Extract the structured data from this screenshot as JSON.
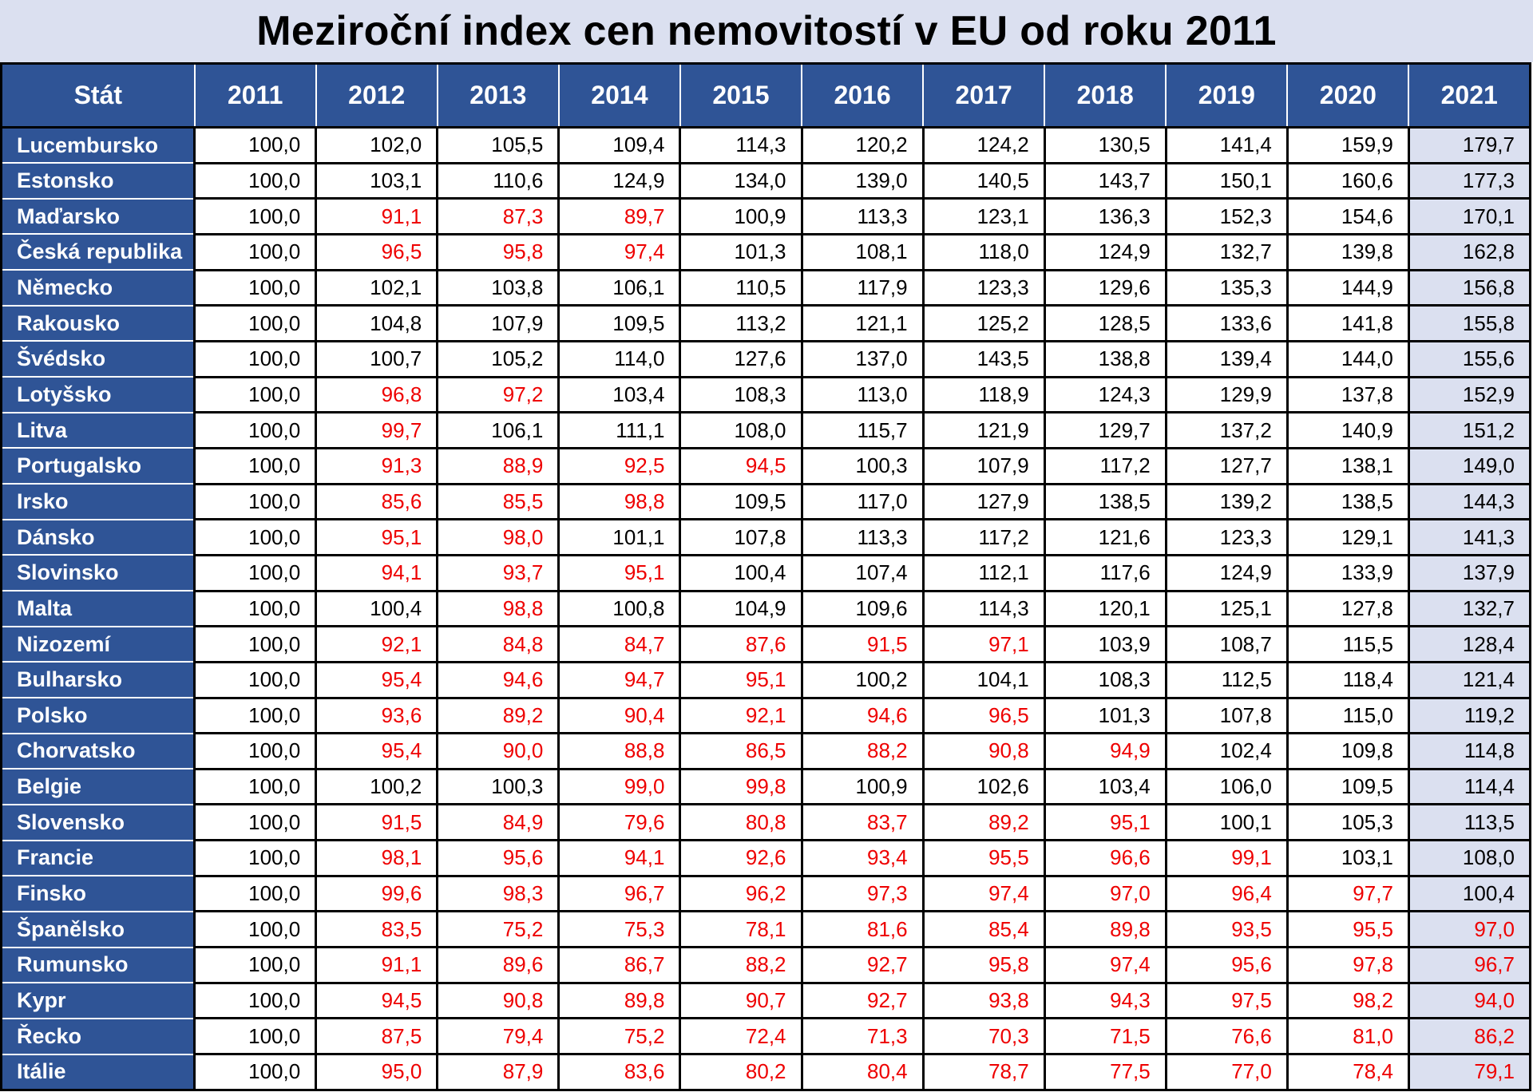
{
  "title": "Meziroční index cen nemovitostí v EU od roku 2011",
  "colors": {
    "header_bg": "#2f5496",
    "title_bg": "#dbe0f0",
    "highlight_column_bg": "#dbe0f0",
    "below_100": "#ee0000",
    "normal_text": "#000000"
  },
  "chart_data": {
    "type": "table",
    "title": "Meziroční index cen nemovitostí v EU od roku 2011",
    "columns": [
      "Stát",
      "2011",
      "2012",
      "2013",
      "2014",
      "2015",
      "2016",
      "2017",
      "2018",
      "2019",
      "2020",
      "2021"
    ],
    "rows": [
      {
        "state": "Lucembursko",
        "values": [
          "100,0",
          "102,0",
          "105,5",
          "109,4",
          "114,3",
          "120,2",
          "124,2",
          "130,5",
          "141,4",
          "159,9",
          "179,7"
        ]
      },
      {
        "state": "Estonsko",
        "values": [
          "100,0",
          "103,1",
          "110,6",
          "124,9",
          "134,0",
          "139,0",
          "140,5",
          "143,7",
          "150,1",
          "160,6",
          "177,3"
        ]
      },
      {
        "state": "Maďarsko",
        "values": [
          "100,0",
          "91,1",
          "87,3",
          "89,7",
          "100,9",
          "113,3",
          "123,1",
          "136,3",
          "152,3",
          "154,6",
          "170,1"
        ]
      },
      {
        "state": "Česká republika",
        "values": [
          "100,0",
          "96,5",
          "95,8",
          "97,4",
          "101,3",
          "108,1",
          "118,0",
          "124,9",
          "132,7",
          "139,8",
          "162,8"
        ]
      },
      {
        "state": "Německo",
        "values": [
          "100,0",
          "102,1",
          "103,8",
          "106,1",
          "110,5",
          "117,9",
          "123,3",
          "129,6",
          "135,3",
          "144,9",
          "156,8"
        ]
      },
      {
        "state": "Rakousko",
        "values": [
          "100,0",
          "104,8",
          "107,9",
          "109,5",
          "113,2",
          "121,1",
          "125,2",
          "128,5",
          "133,6",
          "141,8",
          "155,8"
        ]
      },
      {
        "state": "Švédsko",
        "values": [
          "100,0",
          "100,7",
          "105,2",
          "114,0",
          "127,6",
          "137,0",
          "143,5",
          "138,8",
          "139,4",
          "144,0",
          "155,6"
        ]
      },
      {
        "state": "Lotyšsko",
        "values": [
          "100,0",
          "96,8",
          "97,2",
          "103,4",
          "108,3",
          "113,0",
          "118,9",
          "124,3",
          "129,9",
          "137,8",
          "152,9"
        ]
      },
      {
        "state": "Litva",
        "values": [
          "100,0",
          "99,7",
          "106,1",
          "111,1",
          "108,0",
          "115,7",
          "121,9",
          "129,7",
          "137,2",
          "140,9",
          "151,2"
        ]
      },
      {
        "state": "Portugalsko",
        "values": [
          "100,0",
          "91,3",
          "88,9",
          "92,5",
          "94,5",
          "100,3",
          "107,9",
          "117,2",
          "127,7",
          "138,1",
          "149,0"
        ]
      },
      {
        "state": "Irsko",
        "values": [
          "100,0",
          "85,6",
          "85,5",
          "98,8",
          "109,5",
          "117,0",
          "127,9",
          "138,5",
          "139,2",
          "138,5",
          "144,3"
        ]
      },
      {
        "state": "Dánsko",
        "values": [
          "100,0",
          "95,1",
          "98,0",
          "101,1",
          "107,8",
          "113,3",
          "117,2",
          "121,6",
          "123,3",
          "129,1",
          "141,3"
        ]
      },
      {
        "state": "Slovinsko",
        "values": [
          "100,0",
          "94,1",
          "93,7",
          "95,1",
          "100,4",
          "107,4",
          "112,1",
          "117,6",
          "124,9",
          "133,9",
          "137,9"
        ]
      },
      {
        "state": "Malta",
        "values": [
          "100,0",
          "100,4",
          "98,8",
          "100,8",
          "104,9",
          "109,6",
          "114,3",
          "120,1",
          "125,1",
          "127,8",
          "132,7"
        ]
      },
      {
        "state": "Nizozemí",
        "values": [
          "100,0",
          "92,1",
          "84,8",
          "84,7",
          "87,6",
          "91,5",
          "97,1",
          "103,9",
          "108,7",
          "115,5",
          "128,4"
        ]
      },
      {
        "state": "Bulharsko",
        "values": [
          "100,0",
          "95,4",
          "94,6",
          "94,7",
          "95,1",
          "100,2",
          "104,1",
          "108,3",
          "112,5",
          "118,4",
          "121,4"
        ]
      },
      {
        "state": "Polsko",
        "values": [
          "100,0",
          "93,6",
          "89,2",
          "90,4",
          "92,1",
          "94,6",
          "96,5",
          "101,3",
          "107,8",
          "115,0",
          "119,2"
        ]
      },
      {
        "state": "Chorvatsko",
        "values": [
          "100,0",
          "95,4",
          "90,0",
          "88,8",
          "86,5",
          "88,2",
          "90,8",
          "94,9",
          "102,4",
          "109,8",
          "114,8"
        ]
      },
      {
        "state": "Belgie",
        "values": [
          "100,0",
          "100,2",
          "100,3",
          "99,0",
          "99,8",
          "100,9",
          "102,6",
          "103,4",
          "106,0",
          "109,5",
          "114,4"
        ]
      },
      {
        "state": "Slovensko",
        "values": [
          "100,0",
          "91,5",
          "84,9",
          "79,6",
          "80,8",
          "83,7",
          "89,2",
          "95,1",
          "100,1",
          "105,3",
          "113,5"
        ]
      },
      {
        "state": "Francie",
        "values": [
          "100,0",
          "98,1",
          "95,6",
          "94,1",
          "92,6",
          "93,4",
          "95,5",
          "96,6",
          "99,1",
          "103,1",
          "108,0"
        ]
      },
      {
        "state": "Finsko",
        "values": [
          "100,0",
          "99,6",
          "98,3",
          "96,7",
          "96,2",
          "97,3",
          "97,4",
          "97,0",
          "96,4",
          "97,7",
          "100,4"
        ]
      },
      {
        "state": "Španělsko",
        "values": [
          "100,0",
          "83,5",
          "75,2",
          "75,3",
          "78,1",
          "81,6",
          "85,4",
          "89,8",
          "93,5",
          "95,5",
          "97,0"
        ]
      },
      {
        "state": "Rumunsko",
        "values": [
          "100,0",
          "91,1",
          "89,6",
          "86,7",
          "88,2",
          "92,7",
          "95,8",
          "97,4",
          "95,6",
          "97,8",
          "96,7"
        ]
      },
      {
        "state": "Kypr",
        "values": [
          "100,0",
          "94,5",
          "90,8",
          "89,8",
          "90,7",
          "92,7",
          "93,8",
          "94,3",
          "97,5",
          "98,2",
          "94,0"
        ]
      },
      {
        "state": "Řecko",
        "values": [
          "100,0",
          "87,5",
          "79,4",
          "75,2",
          "72,4",
          "71,3",
          "70,3",
          "71,5",
          "76,6",
          "81,0",
          "86,2"
        ]
      },
      {
        "state": "Itálie",
        "values": [
          "100,0",
          "95,0",
          "87,9",
          "83,6",
          "80,2",
          "80,4",
          "78,7",
          "77,5",
          "77,0",
          "78,4",
          "79,1"
        ]
      }
    ]
  }
}
